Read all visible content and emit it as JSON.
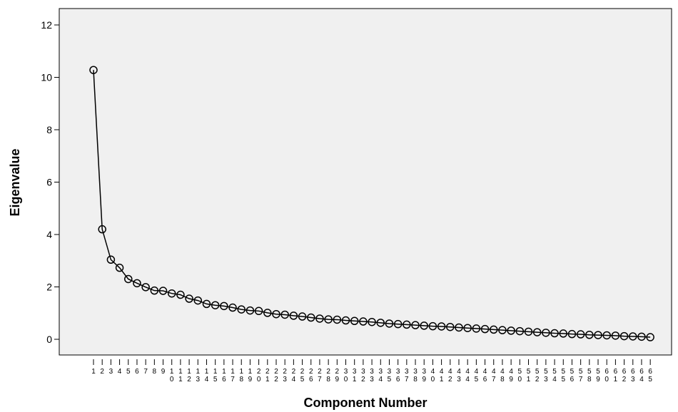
{
  "chart_data": {
    "type": "line",
    "title": "",
    "xlabel": "Component Number",
    "ylabel": "Eigenvalue",
    "ylim": [
      -0.7,
      12.4
    ],
    "yticks": [
      0,
      2,
      4,
      6,
      8,
      10,
      12
    ],
    "grid": false,
    "x": [
      1,
      2,
      3,
      4,
      5,
      6,
      7,
      8,
      9,
      10,
      11,
      12,
      13,
      14,
      15,
      16,
      17,
      18,
      19,
      20,
      21,
      22,
      23,
      24,
      25,
      26,
      27,
      28,
      29,
      30,
      31,
      32,
      33,
      34,
      35,
      36,
      37,
      38,
      39,
      40,
      41,
      42,
      43,
      44,
      45,
      46,
      47,
      48,
      49,
      50,
      51,
      52,
      53,
      54,
      55,
      56,
      57,
      58,
      59,
      60,
      61,
      62,
      63,
      64,
      65
    ],
    "series": [
      {
        "name": "",
        "values": [
          10.28,
          4.2,
          3.04,
          2.73,
          2.3,
          2.14,
          1.99,
          1.86,
          1.85,
          1.75,
          1.7,
          1.55,
          1.48,
          1.35,
          1.3,
          1.27,
          1.21,
          1.14,
          1.1,
          1.08,
          1.01,
          0.96,
          0.94,
          0.9,
          0.87,
          0.83,
          0.79,
          0.76,
          0.75,
          0.72,
          0.7,
          0.68,
          0.66,
          0.63,
          0.6,
          0.58,
          0.56,
          0.54,
          0.52,
          0.5,
          0.49,
          0.47,
          0.45,
          0.43,
          0.41,
          0.39,
          0.37,
          0.35,
          0.33,
          0.31,
          0.29,
          0.27,
          0.25,
          0.23,
          0.22,
          0.2,
          0.19,
          0.17,
          0.16,
          0.15,
          0.14,
          0.12,
          0.11,
          0.1,
          0.08
        ]
      }
    ]
  }
}
